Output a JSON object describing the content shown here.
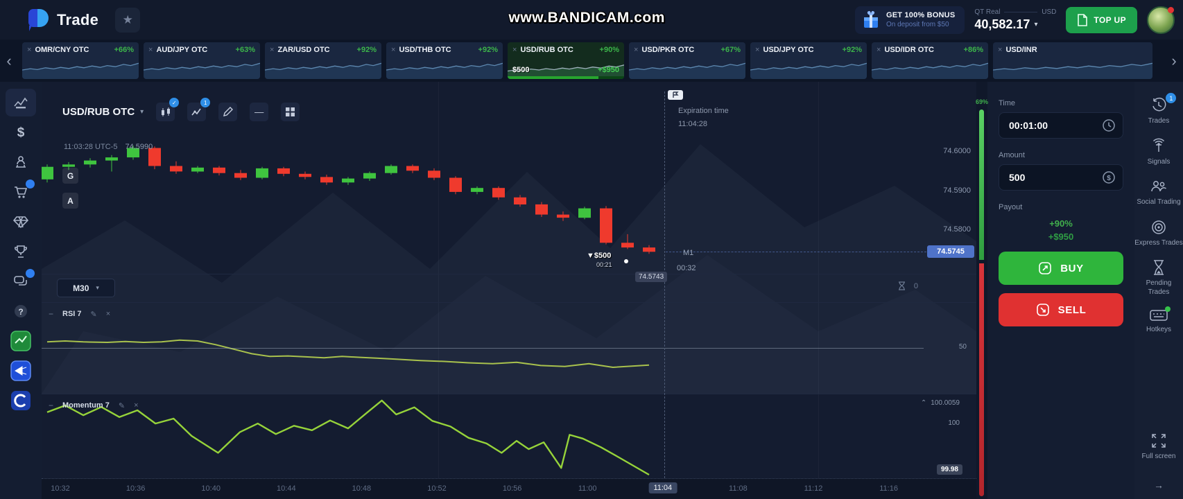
{
  "icons": {
    "star": "★",
    "caret_down": "▾",
    "chevron_left": "‹",
    "chevron_right": "›",
    "close": "×",
    "collapse": "−",
    "pencil": "✎",
    "chevron_up": "⌃",
    "arrow_right": "→",
    "minus": "—"
  },
  "topbar": {
    "brand": "Trade",
    "watermark": "www.BANDICAM.com",
    "bonus": {
      "line1": "GET 100% BONUS",
      "line2": "On deposit from $50"
    },
    "account": {
      "type": "QT Real",
      "currency": "USD",
      "balance": "40,582.17"
    },
    "topup_label": "TOP UP"
  },
  "tabs": {
    "items": [
      {
        "pair": "OMR/CNY OTC",
        "payout": "+66%"
      },
      {
        "pair": "AUD/JPY OTC",
        "payout": "+63%"
      },
      {
        "pair": "ZAR/USD OTC",
        "payout": "+92%"
      },
      {
        "pair": "USD/THB OTC",
        "payout": "+92%"
      },
      {
        "pair": "USD/RUB OTC",
        "payout": "+90%",
        "active": true,
        "stake": "$500",
        "profit": "+$950"
      },
      {
        "pair": "USD/PKR OTC",
        "payout": "+67%"
      },
      {
        "pair": "USD/JPY OTC",
        "payout": "+92%"
      },
      {
        "pair": "USD/IDR OTC",
        "payout": "+86%"
      },
      {
        "pair": "USD/INR",
        "payout": ""
      }
    ]
  },
  "left_sidebar": {
    "items": [
      {
        "icon": "chart-line-icon",
        "active": true
      },
      {
        "icon": "dollar-icon"
      },
      {
        "icon": "achievements-icon"
      },
      {
        "icon": "market-cart-icon",
        "badge": "dot"
      },
      {
        "icon": "gem-icon"
      },
      {
        "icon": "tournaments-icon"
      },
      {
        "icon": "chat-icon",
        "badge": "dot"
      },
      {
        "icon": "help-icon"
      },
      {
        "icon": "promo-green-icon"
      },
      {
        "icon": "promo-share-icon"
      },
      {
        "icon": "promo-c-icon"
      }
    ]
  },
  "chart": {
    "symbol": "USD/RUB OTC",
    "timeframe": "M30",
    "ohlc_info": {
      "time": "11:03:28 UTC-5",
      "price": "74.5990"
    },
    "overlay_letters": [
      "G",
      "A"
    ],
    "price_axis": {
      "labels": [
        "74.6000",
        "74.5900",
        "74.5800"
      ],
      "current": "74.5745"
    },
    "expiration": {
      "title": "Expiration time",
      "time": "11:04:28",
      "marker": "M1",
      "countdown": "00:32"
    },
    "trade_marker": {
      "arrow": "▼",
      "amount": "$500",
      "elapsed": "00:21",
      "strike": "74.5743"
    },
    "pending_count": "0",
    "x_axis": {
      "labels": [
        "10:32",
        "10:36",
        "10:40",
        "10:44",
        "10:48",
        "10:52",
        "10:56",
        "11:00",
        "11:04",
        "11:08",
        "11:12",
        "11:16"
      ],
      "active": "11:04"
    },
    "indicators": {
      "rsi": {
        "name": "RSI 7",
        "mid_label": "50"
      },
      "momentum": {
        "name": "Momentum 7",
        "top_value": "100.0059",
        "axis_label": "100",
        "current_badge": "99.98"
      }
    }
  },
  "chart_data": [
    {
      "type": "candlestick",
      "title": "USD/RUB OTC price",
      "ylabel": "price",
      "ylim": [
        74.5689,
        74.6179
      ],
      "gridlines": [
        74.6,
        74.59,
        74.58
      ],
      "current_price": 74.5745,
      "candles_ohlc": [
        [
          74.593,
          74.5968,
          74.5922,
          74.5962
        ],
        [
          74.5962,
          74.5974,
          74.5954,
          74.5968
        ],
        [
          74.5968,
          74.5984,
          74.596,
          74.5978
        ],
        [
          74.5978,
          74.5992,
          74.595,
          74.5986
        ],
        [
          74.5986,
          74.6016,
          74.598,
          74.601
        ],
        [
          74.601,
          74.6014,
          74.5956,
          74.5964
        ],
        [
          74.5964,
          74.5976,
          74.5944,
          74.595
        ],
        [
          74.595,
          74.5964,
          74.5946,
          74.596
        ],
        [
          74.596,
          74.5964,
          74.594,
          74.5946
        ],
        [
          74.5946,
          74.5954,
          74.5928,
          74.5934
        ],
        [
          74.5934,
          74.5962,
          74.593,
          74.5958
        ],
        [
          74.5958,
          74.5962,
          74.5938,
          74.5944
        ],
        [
          74.5944,
          74.595,
          74.593,
          74.5936
        ],
        [
          74.5936,
          74.5942,
          74.5916,
          74.5922
        ],
        [
          74.5922,
          74.5936,
          74.5916,
          74.5932
        ],
        [
          74.5932,
          74.595,
          74.5926,
          74.5946
        ],
        [
          74.5946,
          74.5968,
          74.5942,
          74.5964
        ],
        [
          74.5964,
          74.5968,
          74.5946,
          74.5952
        ],
        [
          74.5952,
          74.5958,
          74.5928,
          74.5934
        ],
        [
          74.5934,
          74.5938,
          74.5892,
          74.5898
        ],
        [
          74.5898,
          74.5912,
          74.5892,
          74.5908
        ],
        [
          74.5908,
          74.5912,
          74.5878,
          74.5884
        ],
        [
          74.5884,
          74.589,
          74.586,
          74.5866
        ],
        [
          74.5866,
          74.5872,
          74.5834,
          74.584
        ],
        [
          74.584,
          74.5848,
          74.5824,
          74.5832
        ],
        [
          74.5832,
          74.586,
          74.5828,
          74.5856
        ],
        [
          74.5856,
          74.5862,
          74.5764,
          74.5768
        ],
        [
          74.5768,
          74.579,
          74.5752,
          74.5756
        ],
        [
          74.5756,
          74.5762,
          74.574,
          74.5745
        ]
      ],
      "up_color": "#3fc43f",
      "down_color": "#ef3a2d"
    },
    {
      "type": "line",
      "title": "RSI 7",
      "ylim": [
        0,
        100
      ],
      "midline": 50,
      "color": "#a9c24d",
      "points": [
        [
          0,
          57
        ],
        [
          0.03,
          58
        ],
        [
          0.06,
          57
        ],
        [
          0.1,
          56.5
        ],
        [
          0.13,
          57.5
        ],
        [
          0.16,
          56.5
        ],
        [
          0.19,
          57
        ],
        [
          0.22,
          59
        ],
        [
          0.25,
          58
        ],
        [
          0.28,
          54
        ],
        [
          0.31,
          49
        ],
        [
          0.34,
          44
        ],
        [
          0.37,
          41
        ],
        [
          0.4,
          41.5
        ],
        [
          0.43,
          40.5
        ],
        [
          0.46,
          39.5
        ],
        [
          0.49,
          41
        ],
        [
          0.52,
          40
        ],
        [
          0.55,
          39
        ],
        [
          0.58,
          38
        ],
        [
          0.62,
          36.5
        ],
        [
          0.66,
          35.5
        ],
        [
          0.7,
          34
        ],
        [
          0.74,
          33
        ],
        [
          0.78,
          34.5
        ],
        [
          0.82,
          31
        ],
        [
          0.86,
          30
        ],
        [
          0.9,
          33
        ],
        [
          0.94,
          29
        ],
        [
          1,
          31.5
        ]
      ]
    },
    {
      "type": "line",
      "title": "Momentum 7",
      "ylim": [
        99.98509,
        100.00754
      ],
      "color": "#96d33a",
      "points": [
        [
          0,
          100.0028
        ],
        [
          0.03,
          100.0046
        ],
        [
          0.06,
          100.002
        ],
        [
          0.09,
          100.0042
        ],
        [
          0.12,
          100.0015
        ],
        [
          0.15,
          100.0033
        ],
        [
          0.18,
          99.9998
        ],
        [
          0.21,
          100.0011
        ],
        [
          0.24,
          99.9965
        ],
        [
          0.284,
          99.992
        ],
        [
          0.32,
          99.9975
        ],
        [
          0.35,
          99.9998
        ],
        [
          0.38,
          99.997
        ],
        [
          0.41,
          99.9992
        ],
        [
          0.44,
          99.998
        ],
        [
          0.47,
          100.0006
        ],
        [
          0.5,
          99.9985
        ],
        [
          0.53,
          100.0025
        ],
        [
          0.556,
          100.0059
        ],
        [
          0.58,
          100.0022
        ],
        [
          0.61,
          100.0041
        ],
        [
          0.64,
          100.0005
        ],
        [
          0.67,
          99.999
        ],
        [
          0.7,
          99.996
        ],
        [
          0.73,
          99.9945
        ],
        [
          0.755,
          99.992
        ],
        [
          0.78,
          99.9952
        ],
        [
          0.8,
          99.993
        ],
        [
          0.825,
          99.9948
        ],
        [
          0.854,
          99.988
        ],
        [
          0.868,
          99.9968
        ],
        [
          0.89,
          99.9958
        ],
        [
          0.92,
          99.9935
        ],
        [
          0.95,
          99.9908
        ],
        [
          0.975,
          99.9885
        ],
        [
          1,
          99.9862
        ]
      ]
    },
    {
      "type": "area",
      "title": "tab sparkline",
      "ylim": [
        0,
        1
      ],
      "color": "#5d88b0",
      "points": [
        [
          0,
          0.4
        ],
        [
          0.07,
          0.46
        ],
        [
          0.13,
          0.42
        ],
        [
          0.2,
          0.5
        ],
        [
          0.27,
          0.45
        ],
        [
          0.33,
          0.52
        ],
        [
          0.4,
          0.47
        ],
        [
          0.47,
          0.55
        ],
        [
          0.53,
          0.5
        ],
        [
          0.6,
          0.58
        ],
        [
          0.67,
          0.52
        ],
        [
          0.73,
          0.6
        ],
        [
          0.8,
          0.55
        ],
        [
          0.87,
          0.65
        ],
        [
          0.93,
          0.6
        ],
        [
          1,
          0.7
        ]
      ]
    }
  ],
  "gauge": {
    "up": "69%"
  },
  "trade_panel": {
    "time_label": "Time",
    "time_value": "00:01:00",
    "amount_label": "Amount",
    "amount_value": "500",
    "payout_label": "Payout",
    "payout_pct": "+90%",
    "payout_amount": "+$950",
    "buy_label": "BUY",
    "sell_label": "SELL"
  },
  "right_rail": {
    "items": [
      {
        "icon": "trades-history-icon",
        "label": "Trades",
        "badge": "1"
      },
      {
        "icon": "signals-icon",
        "label": "Signals"
      },
      {
        "icon": "social-trading-icon",
        "label": "Social Trading"
      },
      {
        "icon": "express-trades-icon",
        "label": "Express Trades"
      },
      {
        "icon": "pending-trades-icon",
        "label": "Pending Trades"
      },
      {
        "icon": "hotkeys-icon",
        "label": "Hotkeys",
        "gdot": true
      }
    ],
    "fullscreen": {
      "icon": "fullscreen-icon",
      "label": "Full screen"
    }
  }
}
